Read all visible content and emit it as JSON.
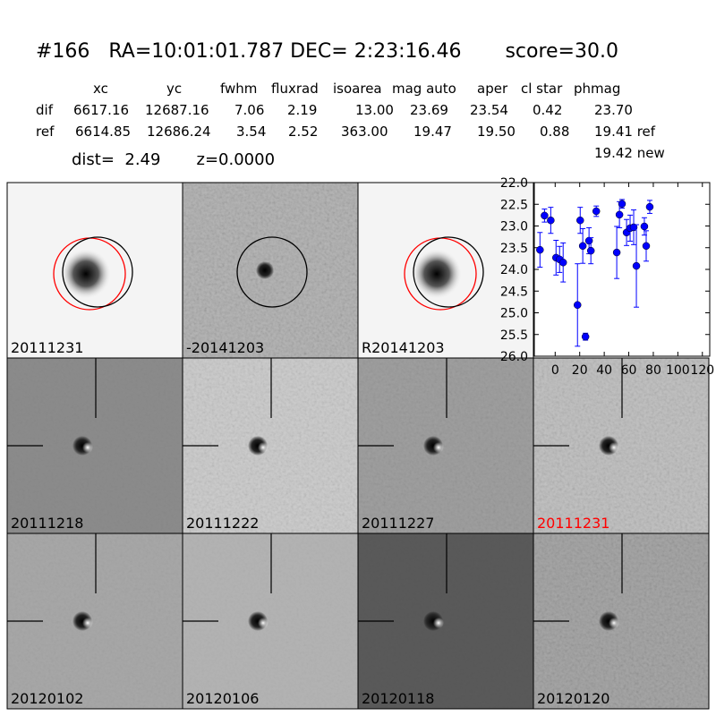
{
  "header": {
    "title": "#166   RA=10:01:01.787 DEC= 2:23:16.46       score=30.0"
  },
  "table": {
    "header": [
      "xc",
      "yc",
      "fwhm",
      "fluxrad",
      "isoarea",
      "mag auto",
      "aper",
      "cl star",
      "phmag"
    ],
    "rows": [
      [
        "dif",
        "6617.16",
        "12687.16",
        "7.06",
        "2.19",
        "13.00",
        "23.69",
        "23.54",
        "0.42",
        "23.70"
      ],
      [
        "ref",
        "6614.85",
        "12686.24",
        "3.54",
        "2.52",
        "363.00",
        "19.47",
        "19.50",
        "0.88",
        "19.41 ref"
      ]
    ],
    "extra": "19.42 new",
    "dist_line": "dist=  2.49       z=0.0000"
  },
  "stamps": [
    {
      "label": "20111231"
    },
    {
      "label": "-20141203"
    },
    {
      "label": "R20141203"
    },
    {
      "label": "20111218"
    },
    {
      "label": "20111222"
    },
    {
      "label": "20111227"
    },
    {
      "label": "20111231",
      "label_color": "#ff0000"
    },
    {
      "label": "20120102"
    },
    {
      "label": "20120106"
    },
    {
      "label": "20120118"
    },
    {
      "label": "20120120"
    }
  ],
  "chart_data": {
    "type": "scatter",
    "color": "#0000ff",
    "x": [
      -12.4,
      -8.7,
      -3.6,
      0.7,
      3.6,
      6.5,
      18.2,
      20.4,
      22.5,
      24.7,
      27.6,
      29.1,
      33.5,
      50.2,
      52.4,
      54.5,
      58.2,
      61.1,
      64,
      66.2,
      72.7,
      74.2,
      77.1
    ],
    "values": [
      23.55,
      22.76,
      22.87,
      23.73,
      23.77,
      23.84,
      24.82,
      22.87,
      23.46,
      25.55,
      23.34,
      23.57,
      22.66,
      23.61,
      22.74,
      22.49,
      23.15,
      23.05,
      23.03,
      23.92,
      23.01,
      23.46,
      22.56
    ],
    "errors": [
      0.4,
      0.15,
      0.3,
      0.4,
      0.3,
      0.45,
      0.95,
      0.3,
      0.4,
      0.08,
      0.3,
      0.3,
      0.12,
      0.6,
      0.3,
      0.1,
      0.3,
      0.3,
      0.4,
      0.95,
      0.2,
      0.35,
      0.15
    ],
    "xlim": [
      -17,
      126
    ],
    "ylim": [
      26,
      22
    ],
    "xticks": [
      0,
      20,
      40,
      60,
      80,
      100,
      120
    ],
    "yticks": [
      {
        "value": 22,
        "label": "22.0"
      },
      22.5,
      {
        "value": 23,
        "label": "23.0"
      },
      23.5,
      {
        "value": 24,
        "label": "24.0"
      },
      24.5,
      {
        "value": 25,
        "label": "25.0"
      },
      25.5,
      {
        "value": 26,
        "label": "26.0"
      }
    ]
  }
}
